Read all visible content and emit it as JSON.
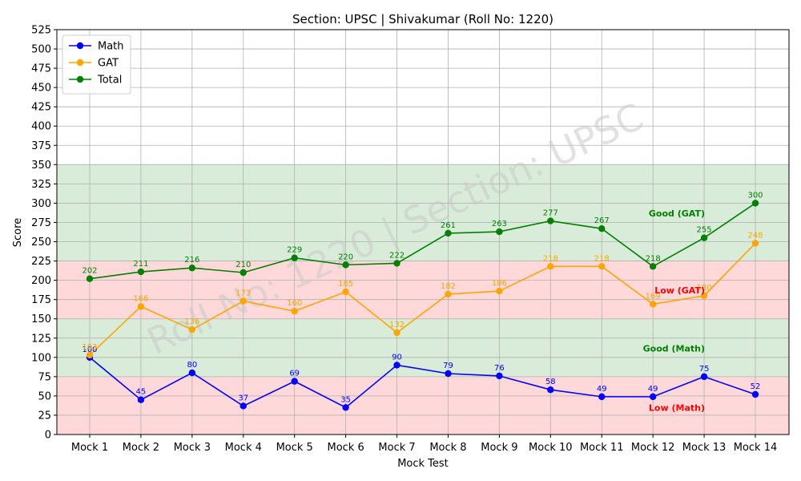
{
  "chart_data": {
    "type": "line",
    "title": "Section: UPSC | Shivakumar (Roll No: 1220)",
    "xlabel": "Mock Test",
    "ylabel": "Score",
    "ylim": [
      0,
      525
    ],
    "ytick_step": 25,
    "grid": true,
    "legend_position": "top-left",
    "categories": [
      "Mock 1",
      "Mock 2",
      "Mock 3",
      "Mock 4",
      "Mock 5",
      "Mock 6",
      "Mock 7",
      "Mock 8",
      "Mock 9",
      "Mock 10",
      "Mock 11",
      "Mock 12",
      "Mock 13",
      "Mock 14"
    ],
    "series": [
      {
        "name": "Math",
        "color": "#0000ff",
        "values": [
          100,
          45,
          80,
          37,
          69,
          35,
          90,
          79,
          76,
          58,
          49,
          49,
          75,
          52
        ]
      },
      {
        "name": "GAT",
        "color": "#ffa500",
        "values": [
          103,
          166,
          136,
          173,
          160,
          185,
          132,
          182,
          186,
          218,
          218,
          169,
          180,
          248
        ]
      },
      {
        "name": "Total",
        "color": "#008000",
        "values": [
          202,
          211,
          216,
          210,
          229,
          220,
          222,
          261,
          263,
          277,
          267,
          218,
          255,
          300
        ]
      }
    ],
    "zones": [
      {
        "from": 0,
        "to": 75,
        "color": "#ffcccc"
      },
      {
        "from": 75,
        "to": 150,
        "color": "#cce5cc"
      },
      {
        "from": 150,
        "to": 225,
        "color": "#ffcccc"
      },
      {
        "from": 225,
        "to": 350,
        "color": "#cce5cc"
      }
    ],
    "annotations": [
      {
        "text": "Low (Math)",
        "y": 35,
        "color": "#ff0000"
      },
      {
        "text": "Good (Math)",
        "y": 112,
        "color": "#008000"
      },
      {
        "text": "Low (GAT)",
        "y": 187,
        "color": "#ff0000"
      },
      {
        "text": "Good (GAT)",
        "y": 287,
        "color": "#008000"
      }
    ],
    "watermark": "Roll No: 1220 | Section: UPSC"
  }
}
